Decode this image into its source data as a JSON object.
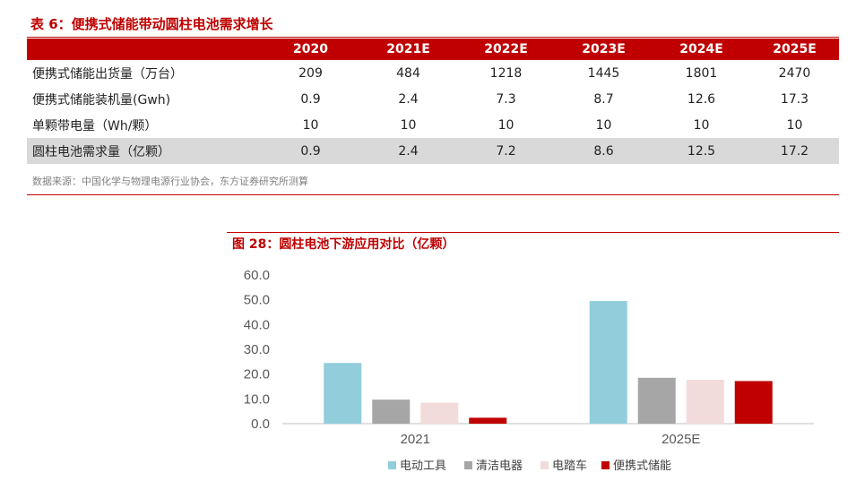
{
  "table": {
    "title": "表 6：便携式储能带动圆柱电池需求增长",
    "headers": [
      "",
      "2020",
      "2021E",
      "2022E",
      "2023E",
      "2024E",
      "2025E"
    ],
    "rows": [
      {
        "label": "便携式储能出货量（万台）",
        "values": [
          "209",
          "484",
          "1218",
          "1445",
          "1801",
          "2470"
        ]
      },
      {
        "label": "便携式储能装机量(Gwh)",
        "values": [
          "0.9",
          "2.4",
          "7.3",
          "8.7",
          "12.6",
          "17.3"
        ]
      },
      {
        "label": "单颗带电量（Wh/颗）",
        "values": [
          "10",
          "10",
          "10",
          "10",
          "10",
          "10"
        ]
      },
      {
        "label": "圆柱电池需求量（亿颗）",
        "values": [
          "0.9",
          "2.4",
          "7.2",
          "8.6",
          "12.5",
          "17.2"
        ]
      }
    ],
    "source": "数据来源：中国化学与物理电源行业协会，东方证券研究所测算"
  },
  "figure": {
    "title": "图 28：圆柱电池下游应用对比（亿颗）"
  },
  "chart_data": {
    "type": "bar",
    "categories": [
      "2021",
      "2025E"
    ],
    "series": [
      {
        "name": "电动工具",
        "values": [
          24.5,
          49.5
        ],
        "color": "#92cddc"
      },
      {
        "name": "清洁电器",
        "values": [
          9.7,
          18.5
        ],
        "color": "#a6a6a6"
      },
      {
        "name": "电踏车",
        "values": [
          8.5,
          17.7
        ],
        "color": "#f2dcdb"
      },
      {
        "name": "便携式储能",
        "values": [
          2.4,
          17.2
        ],
        "color": "#c00000"
      }
    ],
    "y_ticks": [
      "0.0",
      "10.0",
      "20.0",
      "30.0",
      "40.0",
      "50.0",
      "60.0"
    ],
    "ylim": [
      0,
      60
    ],
    "grid": false,
    "legend": "bottom"
  }
}
